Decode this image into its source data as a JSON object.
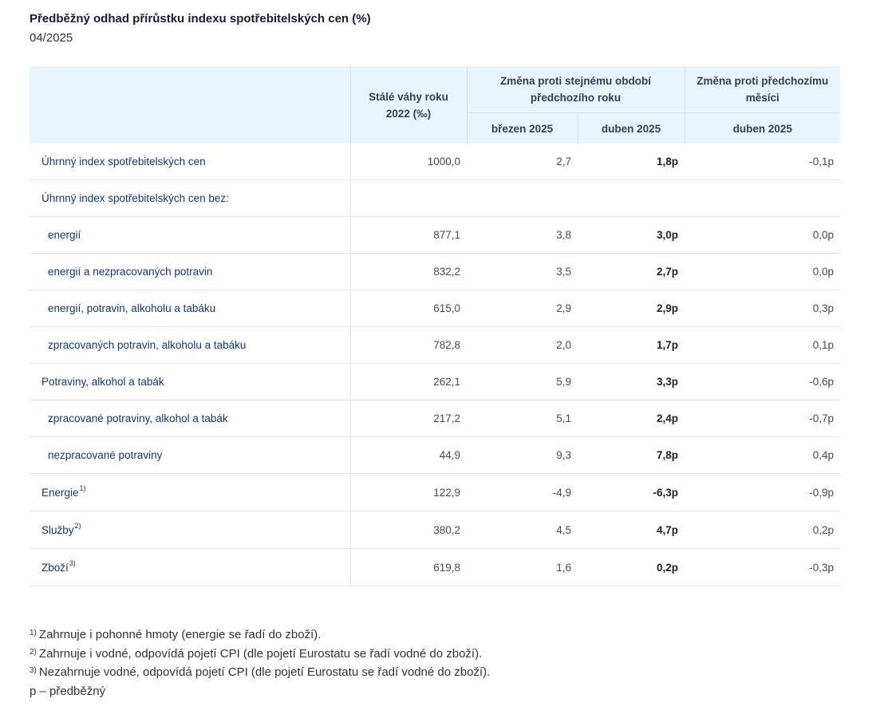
{
  "title": "Předběžný odhad přírůstku indexu spotřebitelských cen (%)",
  "subtitle": "04/2025",
  "table": {
    "header": {
      "weights_label": "Stálé váhy roku 2022 (‰)",
      "yoy_group_label": "Změna proti stejnému období předchozího roku",
      "mom_group_label": "Změna proti předchozímu měsíci",
      "col_march": "březen 2025",
      "col_april": "duben 2025",
      "col_april_mom": "duben 2025"
    },
    "rows": [
      {
        "label": "Úhrnný index spotřebitelských cen",
        "sup": "",
        "weight": "1000,0",
        "march": "2,7",
        "april": "1,8p",
        "mom": "-0,1p"
      },
      {
        "label": "Úhrnný index spotřebitelských cen bez:",
        "sup": "",
        "weight": "",
        "march": "",
        "april": "",
        "mom": ""
      },
      {
        "label": "energií",
        "sup": "",
        "weight": "877,1",
        "march": "3,8",
        "april": "3,0p",
        "mom": "0,0p"
      },
      {
        "label": "energií a nezpracovaných potravin",
        "sup": "",
        "weight": "832,2",
        "march": "3,5",
        "april": "2,7p",
        "mom": "0,0p"
      },
      {
        "label": "energií, potravin, alkoholu a tabáku",
        "sup": "",
        "weight": "615,0",
        "march": "2,9",
        "april": "2,9p",
        "mom": "0,3p"
      },
      {
        "label": "zpracovaných potravin, alkoholu a tabáku",
        "sup": "",
        "weight": "782,8",
        "march": "2,0",
        "april": "1,7p",
        "mom": "0,1p"
      },
      {
        "label": "Potraviny, alkohol a tabák",
        "sup": "",
        "weight": "262,1",
        "march": "5,9",
        "april": "3,3p",
        "mom": "-0,6p"
      },
      {
        "label": "zpracované potraviny, alkohol a tabák",
        "sup": "",
        "weight": "217,2",
        "march": "5,1",
        "april": "2,4p",
        "mom": "-0,7p"
      },
      {
        "label": "nezpracované potraviny",
        "sup": "",
        "weight": "44,9",
        "march": "9,3",
        "april": "7,8p",
        "mom": "0,4p"
      },
      {
        "label": "Energie",
        "sup": "1)",
        "weight": "122,9",
        "march": "-4,9",
        "april": "-6,3p",
        "mom": "-0,9p"
      },
      {
        "label": "Služby",
        "sup": "2)",
        "weight": "380,2",
        "march": "4,5",
        "april": "4,7p",
        "mom": "0,2p"
      },
      {
        "label": "Zboží",
        "sup": "3)",
        "weight": "619,8",
        "march": "1,6",
        "april": "0,2p",
        "mom": "-0,3p"
      }
    ]
  },
  "notes": [
    {
      "mark": "1)",
      "text": "Zahrnuje i pohonné hmoty (energie se řadí do zboží)."
    },
    {
      "mark": "2)",
      "text": "Zahrnuje i vodné, odpovídá pojetí CPI (dle pojetí Eurostatu se řadí vodné do zboží)."
    },
    {
      "mark": "3)",
      "text": "Nezahrnuje vodné, odpovídá pojetí CPI (dle pojetí Eurostatu se řadí vodné do zboží)."
    },
    {
      "mark": "",
      "text": "p – předběžný"
    }
  ]
}
